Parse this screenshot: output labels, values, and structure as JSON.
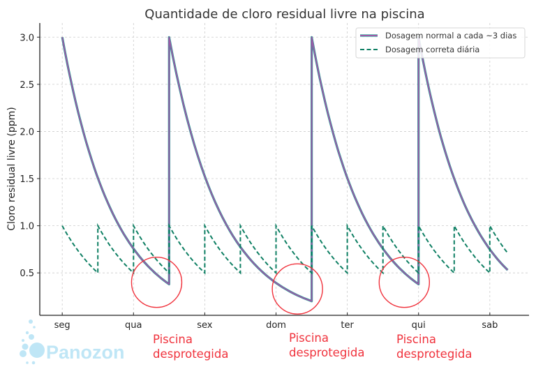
{
  "chart_data": {
    "type": "line",
    "title": "Quantidade de cloro residual livre na piscina",
    "xlabel": "",
    "ylabel": "Cloro residual livre (ppm)",
    "xlim": [
      -0.63,
      13.1
    ],
    "ylim": [
      0.05,
      3.15
    ],
    "grid": true,
    "legend_position": "upper right",
    "x_ticks": [
      0,
      2,
      4,
      6,
      8,
      10,
      12
    ],
    "x_tick_labels": [
      "seg",
      "qua",
      "sex",
      "dom",
      "ter",
      "qui",
      "sab"
    ],
    "y_ticks": [
      0.5,
      1.0,
      1.5,
      2.0,
      2.5,
      3.0
    ],
    "y_tick_labels": [
      "0.5",
      "1.0",
      "1.5",
      "2.0",
      "2.5",
      "3.0"
    ],
    "series": [
      {
        "name": "Dosagem normal a cada ~3 dias",
        "style": "solid",
        "color": "#9b59a6",
        "edge_color": "#1aa394",
        "segments": [
          {
            "start_day": 0,
            "end_day": 3,
            "start_value": 3.0,
            "end_value": 0.38
          },
          {
            "start_day": 3,
            "end_day": 7,
            "start_value": 3.0,
            "end_value": 0.2
          },
          {
            "start_day": 7,
            "end_day": 10,
            "start_value": 3.0,
            "end_value": 0.38
          },
          {
            "start_day": 10,
            "end_day": 12.5,
            "start_value": 3.0,
            "end_value": 0.53
          }
        ]
      },
      {
        "name": "Dosagem correta diária",
        "style": "dashed",
        "color": "#0e7f63",
        "segments": [
          {
            "start_day": 0,
            "end_day": 1,
            "start_value": 1.0,
            "end_value": 0.5
          },
          {
            "start_day": 1,
            "end_day": 2,
            "start_value": 1.0,
            "end_value": 0.5
          },
          {
            "start_day": 2,
            "end_day": 3,
            "start_value": 1.0,
            "end_value": 0.5
          },
          {
            "start_day": 3,
            "end_day": 4,
            "start_value": 1.0,
            "end_value": 0.5
          },
          {
            "start_day": 4,
            "end_day": 5,
            "start_value": 1.0,
            "end_value": 0.5
          },
          {
            "start_day": 5,
            "end_day": 6,
            "start_value": 1.0,
            "end_value": 0.5
          },
          {
            "start_day": 6,
            "end_day": 7,
            "start_value": 1.0,
            "end_value": 0.5
          },
          {
            "start_day": 7,
            "end_day": 8,
            "start_value": 1.0,
            "end_value": 0.5
          },
          {
            "start_day": 8,
            "end_day": 9,
            "start_value": 1.0,
            "end_value": 0.5
          },
          {
            "start_day": 9,
            "end_day": 10,
            "start_value": 1.0,
            "end_value": 0.5
          },
          {
            "start_day": 10,
            "end_day": 11,
            "start_value": 1.0,
            "end_value": 0.5
          },
          {
            "start_day": 11,
            "end_day": 12,
            "start_value": 1.0,
            "end_value": 0.5
          },
          {
            "start_day": 12,
            "end_day": 12.5,
            "start_value": 1.0,
            "end_value": 0.71
          }
        ]
      }
    ],
    "annotations": [
      {
        "type": "circle",
        "center_day": 2.65,
        "center_value": 0.4,
        "label": "Piscina desprotegida"
      },
      {
        "type": "circle",
        "center_day": 6.6,
        "center_value": 0.33,
        "label": "Piscina desprotegida"
      },
      {
        "type": "circle",
        "center_day": 9.6,
        "center_value": 0.4,
        "label": "Piscina desprotegida"
      }
    ]
  },
  "annotations_text": {
    "line1": "Piscina",
    "line2": "desprotegida"
  },
  "legend": {
    "normal": "Dosagem normal a cada ~3 dias",
    "daily": "Dosagem correta diária"
  },
  "logo": {
    "text": "Panozon"
  },
  "colors": {
    "normal_line": "#9b59a6",
    "normal_edge": "#1aa394",
    "daily_line": "#0e7f63",
    "annotation": "#f0323c",
    "logo": "#bfe6f6",
    "grid": "#cccccc"
  }
}
